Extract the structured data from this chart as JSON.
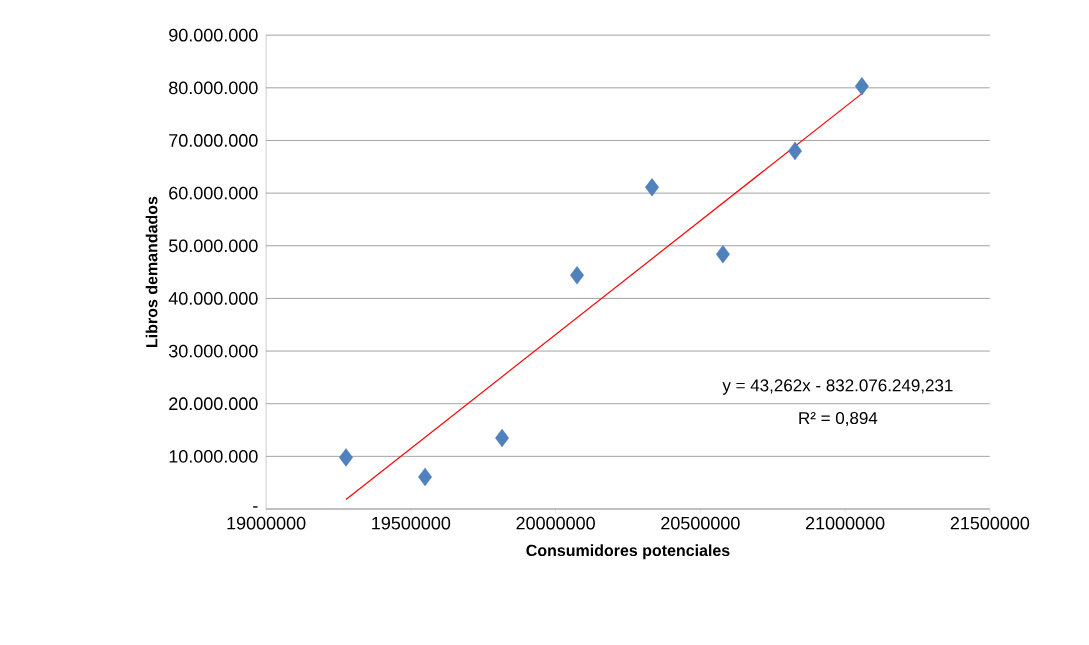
{
  "chart_data": {
    "type": "scatter",
    "xlabel": "Consumidores potenciales",
    "ylabel": "Libros demandados",
    "x": [
      19276000,
      19549000,
      19815000,
      20074000,
      20333000,
      20578000,
      20827000,
      21058000
    ],
    "series": [
      {
        "color": "#4f81bd",
        "marker": "diamond",
        "values": [
          9800000,
          6100000,
          13500000,
          44400000,
          61100000,
          48400000,
          68000000,
          80300000
        ]
      },
      {
        "type": "line",
        "color": "#ff0000",
        "marker": "none",
        "line_style": "solid",
        "x": [
          19276000,
          21058000
        ],
        "values": [
          1800000,
          78900000
        ]
      }
    ],
    "xlim": [
      19000000,
      21500000
    ],
    "xticks": [
      19000000,
      19500000,
      20000000,
      20500000,
      21000000,
      21500000
    ],
    "ylim": [
      0,
      90000000
    ],
    "yticks": [
      {
        "value": 0,
        "label": "-"
      },
      {
        "value": 10000000,
        "label": "10.000.000"
      },
      {
        "value": 20000000,
        "label": "20.000.000"
      },
      {
        "value": 30000000,
        "label": "30.000.000"
      },
      {
        "value": 40000000,
        "label": "40.000.000"
      },
      {
        "value": 50000000,
        "label": "50.000.000"
      },
      {
        "value": 60000000,
        "label": "60.000.000"
      },
      {
        "value": 70000000,
        "label": "70.000.000"
      },
      {
        "value": 80000000,
        "label": "80.000.000"
      },
      {
        "value": 90000000,
        "label": "90.000.000"
      }
    ],
    "grid": "y",
    "annotations": [
      "y = 43,262x - 832.076.249,231",
      "R² = 0,894"
    ]
  }
}
